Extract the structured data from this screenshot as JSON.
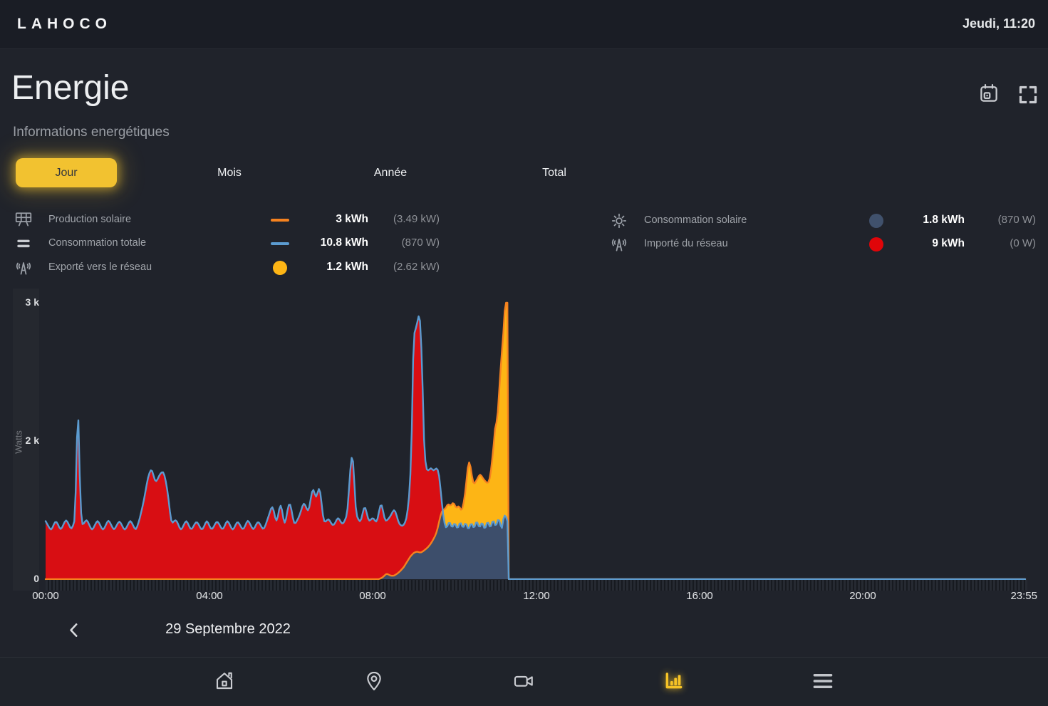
{
  "topbar": {
    "logo": "LAHOCO",
    "datetime": "Jeudi, 11:20"
  },
  "header": {
    "title": "Energie",
    "subtitle": "Informations energétiques"
  },
  "tabs": [
    {
      "label": "Jour",
      "active": true
    },
    {
      "label": "Mois",
      "active": false
    },
    {
      "label": "Année",
      "active": false
    },
    {
      "label": "Total",
      "active": false
    }
  ],
  "legend_left": [
    {
      "icon": "solar-panel-icon",
      "label": "Production solaire",
      "marker": "dash-orange",
      "value": "3 kWh",
      "detail": "(3.49 kW)"
    },
    {
      "icon": "consumption-icon",
      "label": "Consommation totale",
      "marker": "dash-blue",
      "value": "10.8 kWh",
      "detail": "(870 W)"
    },
    {
      "icon": "antenna-icon",
      "label": "Exporté vers le réseau",
      "marker": "dot-yellow",
      "value": "1.2 kWh",
      "detail": "(2.62 kW)"
    }
  ],
  "legend_right": [
    {
      "icon": "sun-icon",
      "label": "Consommation solaire",
      "marker": "dot-slate",
      "value": "1.8 kWh",
      "detail": "(870 W)"
    },
    {
      "icon": "antenna-icon",
      "label": "Importé du réseau",
      "marker": "dot-red",
      "value": "9 kWh",
      "detail": "(0 W)"
    }
  ],
  "date_nav": {
    "date": "29 Septembre 2022"
  },
  "bottom_nav": {
    "items": [
      {
        "icon": "home-icon",
        "active": false
      },
      {
        "icon": "location-pin-icon",
        "active": false
      },
      {
        "icon": "camera-icon",
        "active": false
      },
      {
        "icon": "bar-chart-icon",
        "active": true
      },
      {
        "icon": "menu-icon",
        "active": false
      }
    ]
  },
  "colors": {
    "accent_yellow": "#f2c230",
    "chart_production_line": "#f5821f",
    "chart_consumption_line": "#5b9bd0",
    "chart_imported_area": "#d80e13",
    "chart_exported_area": "#fdb515",
    "chart_self_consumption_area": "#3d4e6b"
  },
  "chart_data": {
    "type": "area",
    "x_unit": "minutes",
    "x_range": [
      0,
      1435
    ],
    "y_label": "Watts",
    "y_ticks": [
      {
        "label": "3 k",
        "v": 3000
      },
      {
        "label": "2 k",
        "v": 2000
      },
      {
        "label": "0",
        "v": 0
      }
    ],
    "x_ticks": [
      {
        "t": 0,
        "label": "00:00"
      },
      {
        "t": 240,
        "label": "04:00"
      },
      {
        "t": 480,
        "label": "08:00"
      },
      {
        "t": 720,
        "label": "12:00"
      },
      {
        "t": 960,
        "label": "16:00"
      },
      {
        "t": 1200,
        "label": "20:00"
      },
      {
        "t": 1435,
        "label": "23:55"
      }
    ],
    "note": "watt values vs minutes since 00:00; data ends ~11:17",
    "series": [
      {
        "name": "Production solaire",
        "color": "#f5821f",
        "points": [
          [
            0,
            0
          ],
          [
            488,
            0
          ],
          [
            494,
            30
          ],
          [
            499,
            85
          ],
          [
            504,
            55
          ],
          [
            509,
            45
          ],
          [
            514,
            75
          ],
          [
            519,
            115
          ],
          [
            524,
            170
          ],
          [
            529,
            250
          ],
          [
            534,
            330
          ],
          [
            539,
            385
          ],
          [
            544,
            400
          ],
          [
            549,
            380
          ],
          [
            554,
            415
          ],
          [
            559,
            455
          ],
          [
            564,
            515
          ],
          [
            569,
            600
          ],
          [
            573,
            690
          ],
          [
            577,
            880
          ],
          [
            581,
            1020
          ],
          [
            585,
            1000
          ],
          [
            589,
            1110
          ],
          [
            593,
            1040
          ],
          [
            597,
            1140
          ],
          [
            601,
            1000
          ],
          [
            605,
            1090
          ],
          [
            609,
            950
          ],
          [
            613,
            1150
          ],
          [
            616,
            1400
          ],
          [
            619,
            1780
          ],
          [
            622,
            1640
          ],
          [
            626,
            1360
          ],
          [
            631,
            1430
          ],
          [
            636,
            1530
          ],
          [
            640,
            1460
          ],
          [
            645,
            1400
          ],
          [
            649,
            1380
          ],
          [
            652,
            1560
          ],
          [
            655,
            1850
          ],
          [
            658,
            2150
          ],
          [
            661,
            2080
          ],
          [
            664,
            2380
          ],
          [
            667,
            2580
          ],
          [
            670,
            2780
          ],
          [
            673,
            3020
          ],
          [
            675,
            3120
          ],
          [
            676,
            3120
          ],
          [
            677,
            0
          ],
          [
            1435,
            0
          ]
        ]
      },
      {
        "name": "Consommation totale",
        "color": "#5b9bd0",
        "points": [
          [
            0,
            840
          ],
          [
            8,
            700
          ],
          [
            15,
            860
          ],
          [
            22,
            705
          ],
          [
            30,
            870
          ],
          [
            38,
            710
          ],
          [
            44,
            900
          ],
          [
            46,
            2400
          ],
          [
            48,
            2400
          ],
          [
            51,
            900
          ],
          [
            53,
            760
          ],
          [
            60,
            870
          ],
          [
            68,
            700
          ],
          [
            76,
            860
          ],
          [
            84,
            700
          ],
          [
            92,
            865
          ],
          [
            100,
            705
          ],
          [
            108,
            850
          ],
          [
            116,
            700
          ],
          [
            124,
            860
          ],
          [
            132,
            700
          ],
          [
            138,
            880
          ],
          [
            144,
            1150
          ],
          [
            150,
            1480
          ],
          [
            155,
            1620
          ],
          [
            161,
            1380
          ],
          [
            167,
            1520
          ],
          [
            173,
            1570
          ],
          [
            179,
            1250
          ],
          [
            184,
            800
          ],
          [
            191,
            870
          ],
          [
            198,
            700
          ],
          [
            206,
            860
          ],
          [
            213,
            700
          ],
          [
            221,
            850
          ],
          [
            229,
            695
          ],
          [
            236,
            860
          ],
          [
            243,
            700
          ],
          [
            251,
            855
          ],
          [
            259,
            700
          ],
          [
            266,
            860
          ],
          [
            274,
            700
          ],
          [
            281,
            850
          ],
          [
            289,
            700
          ],
          [
            296,
            865
          ],
          [
            304,
            705
          ],
          [
            311,
            850
          ],
          [
            319,
            700
          ],
          [
            326,
            900
          ],
          [
            332,
            1080
          ],
          [
            338,
            800
          ],
          [
            344,
            1120
          ],
          [
            350,
            760
          ],
          [
            357,
            1160
          ],
          [
            364,
            780
          ],
          [
            371,
            900
          ],
          [
            378,
            1120
          ],
          [
            385,
            950
          ],
          [
            391,
            1360
          ],
          [
            396,
            1150
          ],
          [
            401,
            1390
          ],
          [
            407,
            800
          ],
          [
            414,
            880
          ],
          [
            421,
            760
          ],
          [
            428,
            900
          ],
          [
            435,
            780
          ],
          [
            442,
            950
          ],
          [
            447,
            1780
          ],
          [
            450,
            1820
          ],
          [
            454,
            950
          ],
          [
            461,
            800
          ],
          [
            467,
            1100
          ],
          [
            473,
            820
          ],
          [
            479,
            900
          ],
          [
            485,
            800
          ],
          [
            491,
            1150
          ],
          [
            497,
            820
          ],
          [
            504,
            900
          ],
          [
            511,
            1030
          ],
          [
            517,
            800
          ],
          [
            523,
            760
          ],
          [
            529,
            880
          ],
          [
            534,
            1400
          ],
          [
            538,
            2750
          ],
          [
            543,
            2830
          ],
          [
            548,
            2950
          ],
          [
            552,
            2400
          ],
          [
            556,
            1620
          ],
          [
            560,
            1560
          ],
          [
            564,
            1620
          ],
          [
            568,
            1560
          ],
          [
            572,
            1620
          ],
          [
            576,
            1540
          ],
          [
            580,
            1100
          ],
          [
            583,
            830
          ],
          [
            587,
            700
          ],
          [
            591,
            880
          ],
          [
            595,
            700
          ],
          [
            599,
            860
          ],
          [
            603,
            680
          ],
          [
            607,
            880
          ],
          [
            611,
            690
          ],
          [
            615,
            870
          ],
          [
            619,
            660
          ],
          [
            623,
            870
          ],
          [
            627,
            680
          ],
          [
            631,
            900
          ],
          [
            635,
            690
          ],
          [
            639,
            880
          ],
          [
            643,
            660
          ],
          [
            647,
            900
          ],
          [
            651,
            680
          ],
          [
            655,
            920
          ],
          [
            659,
            700
          ],
          [
            663,
            950
          ],
          [
            667,
            680
          ],
          [
            671,
            930
          ],
          [
            674,
            900
          ],
          [
            676,
            840
          ],
          [
            677,
            0
          ],
          [
            1435,
            0
          ]
        ]
      }
    ]
  }
}
